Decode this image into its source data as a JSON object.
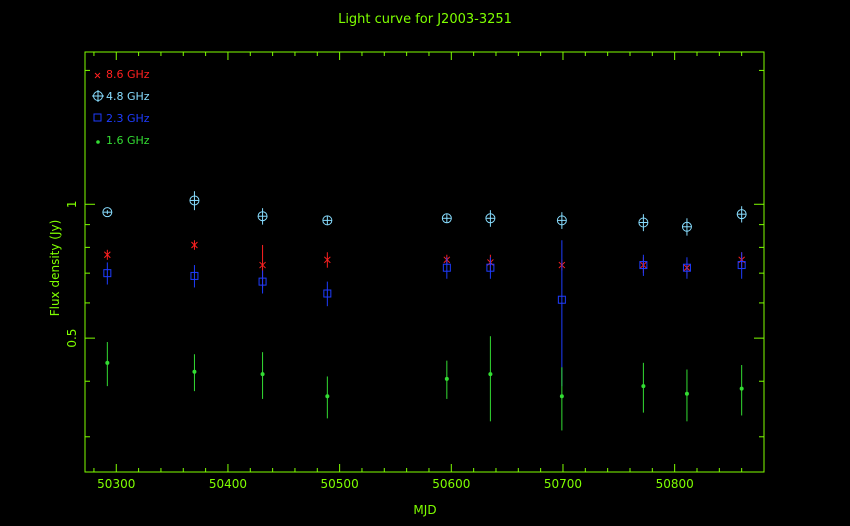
{
  "chart_data": {
    "type": "scatter",
    "title": "Light curve for J2003-3251",
    "xlabel": "MJD",
    "ylabel": "Flux density (Jy)",
    "x_ticks": [
      50300,
      50400,
      50500,
      50600,
      50700,
      50800
    ],
    "y_ticks": [
      0.5,
      1
    ],
    "y_scale": "log",
    "xlim": [
      50272,
      50880
    ],
    "ylim": [
      0.25,
      2.2
    ],
    "legend_position": "top-left",
    "series": [
      {
        "name": "8.6 GHz",
        "color": "#ff2020",
        "marker": "x",
        "points": [
          {
            "x": 50292,
            "y": 0.77,
            "err": 0.02
          },
          {
            "x": 50370,
            "y": 0.81,
            "err": 0.02
          },
          {
            "x": 50431,
            "y": 0.73,
            "err": 0.08
          },
          {
            "x": 50489,
            "y": 0.75,
            "err": 0.03
          },
          {
            "x": 50596,
            "y": 0.75,
            "err": 0.02
          },
          {
            "x": 50635,
            "y": 0.74,
            "err": 0.03
          },
          {
            "x": 50699,
            "y": 0.73,
            "err": 0.02
          },
          {
            "x": 50772,
            "y": 0.73,
            "err": 0.03
          },
          {
            "x": 50811,
            "y": 0.72,
            "err": 0.03
          },
          {
            "x": 50860,
            "y": 0.75,
            "err": 0.03
          }
        ]
      },
      {
        "name": "4.8 GHz",
        "color": "#88ddff",
        "marker": "circle-plus",
        "points": [
          {
            "x": 50292,
            "y": 0.96,
            "err": 0.01
          },
          {
            "x": 50370,
            "y": 1.02,
            "err": 0.05
          },
          {
            "x": 50431,
            "y": 0.94,
            "err": 0.04
          },
          {
            "x": 50489,
            "y": 0.92,
            "err": 0.02
          },
          {
            "x": 50596,
            "y": 0.93,
            "err": 0.02
          },
          {
            "x": 50635,
            "y": 0.93,
            "err": 0.04
          },
          {
            "x": 50699,
            "y": 0.92,
            "err": 0.04
          },
          {
            "x": 50772,
            "y": 0.91,
            "err": 0.04
          },
          {
            "x": 50811,
            "y": 0.89,
            "err": 0.04
          },
          {
            "x": 50860,
            "y": 0.95,
            "err": 0.04
          }
        ]
      },
      {
        "name": "2.3 GHz",
        "color": "#1e3cff",
        "marker": "square",
        "points": [
          {
            "x": 50292,
            "y": 0.7,
            "err": 0.04
          },
          {
            "x": 50370,
            "y": 0.69,
            "err": 0.04
          },
          {
            "x": 50431,
            "y": 0.67,
            "err": 0.04
          },
          {
            "x": 50489,
            "y": 0.63,
            "err": 0.04
          },
          {
            "x": 50596,
            "y": 0.72,
            "err": 0.04
          },
          {
            "x": 50635,
            "y": 0.72,
            "err": 0.04
          },
          {
            "x": 50699,
            "y": 0.61,
            "err": 0.22
          },
          {
            "x": 50772,
            "y": 0.73,
            "err": 0.04
          },
          {
            "x": 50811,
            "y": 0.72,
            "err": 0.04
          },
          {
            "x": 50860,
            "y": 0.73,
            "err": 0.05
          }
        ]
      },
      {
        "name": "1.6 GHz",
        "color": "#33dd33",
        "marker": "dot",
        "points": [
          {
            "x": 50292,
            "y": 0.44,
            "err": 0.05
          },
          {
            "x": 50370,
            "y": 0.42,
            "err": 0.04
          },
          {
            "x": 50431,
            "y": 0.415,
            "err": 0.05
          },
          {
            "x": 50489,
            "y": 0.37,
            "err": 0.04
          },
          {
            "x": 50596,
            "y": 0.405,
            "err": 0.04
          },
          {
            "x": 50635,
            "y": 0.415,
            "err": 0.09
          },
          {
            "x": 50699,
            "y": 0.37,
            "err": 0.06
          },
          {
            "x": 50772,
            "y": 0.39,
            "err": 0.05
          },
          {
            "x": 50811,
            "y": 0.375,
            "err": 0.05
          },
          {
            "x": 50860,
            "y": 0.385,
            "err": 0.05
          }
        ]
      }
    ]
  }
}
